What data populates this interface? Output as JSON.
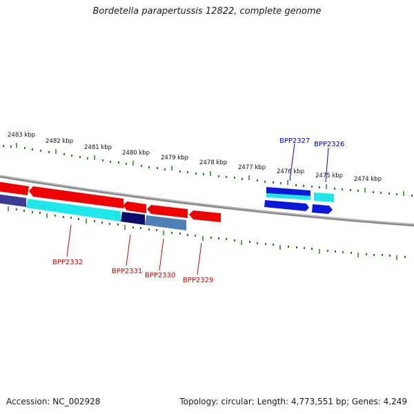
{
  "title": "Bordetella parapertussis 12822, complete genome",
  "footer": {
    "accession": "Accession: NC_002928",
    "topology": "Topology: circular; Length: 4,773,551 bp; Genes: 4,249"
  },
  "colors": {
    "backbone": "#8a8a8a",
    "tick": "#2a7a1e",
    "label_forward": "#0000cc",
    "label_reverse": "#cc0000",
    "scale_text": "#111111"
  },
  "scale_labels": [
    "2483 kbp",
    "2482 kbp",
    "2481 kbp",
    "2480 kbp",
    "2479 kbp",
    "2478 kbp",
    "2477 kbp",
    "2476 kbp",
    "2475 kbp",
    "2474 kbp"
  ],
  "gene_labels": {
    "forward": [
      "BPP2327",
      "BPP2326"
    ],
    "reverse": [
      "BPP2332",
      "BPP2331",
      "BPP2330",
      "BPP2329"
    ]
  }
}
